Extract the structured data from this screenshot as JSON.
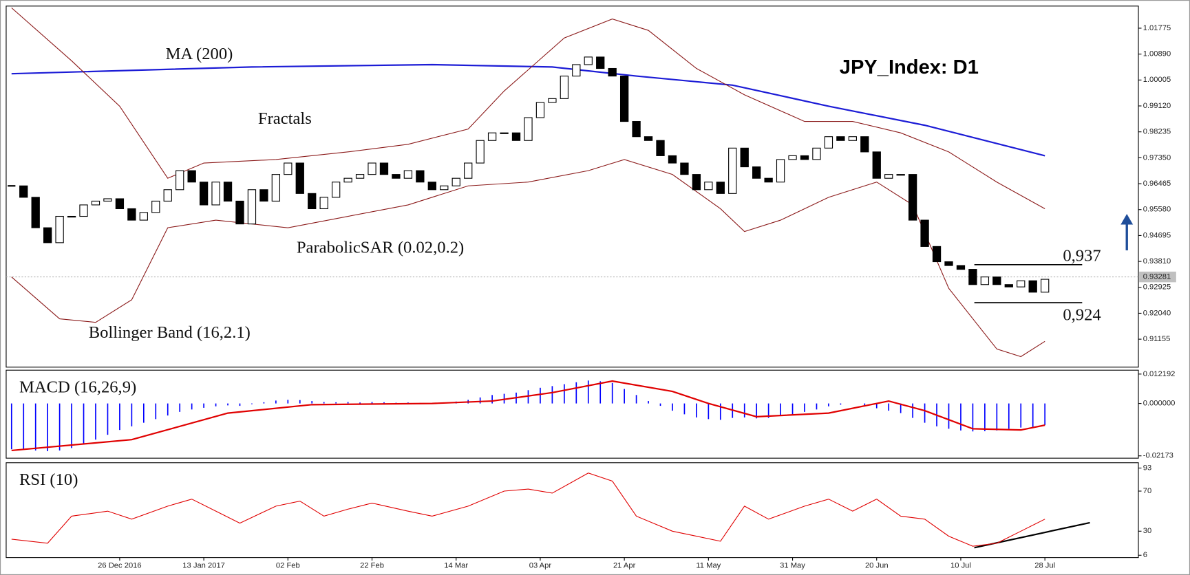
{
  "chart_data": [
    {
      "type": "candlestick",
      "title": "JPY_Index: D1",
      "categories": [
        null,
        null,
        null,
        null,
        null,
        null,
        null,
        null,
        null,
        "26 Dec 2016",
        null,
        null,
        null,
        null,
        null,
        null,
        "13 Jan 2017",
        null,
        null,
        null,
        null,
        null,
        null,
        "02 Feb",
        null,
        null,
        null,
        null,
        null,
        null,
        "22 Feb",
        null,
        null,
        null,
        null,
        null,
        null,
        "14 Mar",
        null,
        null,
        null,
        null,
        null,
        null,
        "03 Apr",
        null,
        null,
        null,
        null,
        null,
        null,
        "21 Apr",
        null,
        null,
        null,
        null,
        null,
        null,
        "11 May",
        null,
        null,
        null,
        null,
        null,
        null,
        "31 May",
        null,
        null,
        null,
        null,
        null,
        null,
        "20 Jun",
        null,
        null,
        null,
        null,
        null,
        null,
        "10 Jul",
        null,
        null,
        null,
        null,
        null,
        null,
        "28 Jul"
      ],
      "values": [
        0.9639,
        0.96,
        0.9496,
        0.9445,
        0.9535,
        0.9535,
        0.9574,
        0.9587,
        0.9595,
        0.9561,
        0.9522,
        0.9548,
        0.9587,
        0.9626,
        0.9691,
        0.9652,
        0.9574,
        0.9652,
        0.9587,
        0.9509,
        0.9626,
        0.9587,
        0.9678,
        0.9717,
        0.9613,
        0.9561,
        0.96,
        0.9652,
        0.9665,
        0.9678,
        0.9717,
        0.9678,
        0.9665,
        0.9691,
        0.9652,
        0.9626,
        0.9639,
        0.9665,
        0.9717,
        0.9794,
        0.982,
        0.982,
        0.9794,
        0.9872,
        0.9924,
        0.9937,
        1.0014,
        1.0053,
        1.0079,
        1.004,
        1.0014,
        0.9859,
        0.9807,
        0.9794,
        0.9742,
        0.9717,
        0.9678,
        0.9626,
        0.9652,
        0.9613,
        0.9768,
        0.9704,
        0.9665,
        0.9652,
        0.9729,
        0.9742,
        0.9729,
        0.9768,
        0.9807,
        0.9794,
        0.9807,
        0.9755,
        0.9665,
        0.9678,
        0.9678,
        0.9522,
        0.9432,
        0.938,
        0.9367,
        0.9354,
        0.9302,
        0.9328,
        0.9302,
        0.9294,
        0.9315,
        0.9276,
        0.932
      ],
      "up_color": "#ffffff",
      "down_color": "#000000",
      "ylim": [
        0.902,
        1.0253
      ],
      "yticks": [
        1.01775,
        {
          "value": 1.0089,
          "label": "1.00890"
        },
        1.00005,
        {
          "value": 0.9912,
          "label": "0.99120"
        },
        0.98235,
        {
          "value": 0.9735,
          "label": "0.97350"
        },
        0.96465,
        {
          "value": 0.9558,
          "label": "0.95580"
        },
        0.94695,
        {
          "value": 0.9381,
          "label": "0.93810"
        },
        0.92925,
        {
          "value": 0.9204,
          "label": "0.92040"
        },
        0.91155
      ],
      "overlays": [
        {
          "name": "MA (200)",
          "color": "#1c1cd6",
          "x": [
            0,
            20,
            35,
            45,
            52,
            60,
            68,
            76,
            86
          ],
          "values": [
            1.0022,
            1.0045,
            1.0053,
            1.0045,
            1.0014,
            0.9983,
            0.9911,
            0.9846,
            0.9742
          ]
        },
        {
          "name": "Bollinger Band (16,2.1)",
          "color": "#8b1a1a",
          "upper": {
            "x": [
              0,
              5,
              9,
              13,
              16,
              22,
              28,
              33,
              38,
              41,
              46,
              50,
              53,
              57,
              61,
              66,
              70,
              74,
              78,
              82,
              86
            ],
            "values": [
              1.0247,
              1.0066,
              0.9911,
              0.9665,
              0.9717,
              0.9729,
              0.9755,
              0.9781,
              0.9833,
              0.9963,
              1.0144,
              1.0209,
              1.017,
              1.004,
              0.995,
              0.9859,
              0.9859,
              0.982,
              0.9755,
              0.9652,
              0.9561
            ]
          },
          "lower": {
            "x": [
              0,
              4,
              7,
              10,
              13,
              17,
              23,
              28,
              33,
              38,
              43,
              48,
              51,
              55,
              59,
              61,
              64,
              68,
              72,
              75,
              78,
              82,
              84,
              86
            ],
            "values": [
              0.9328,
              0.9185,
              0.9173,
              0.925,
              0.9496,
              0.9522,
              0.9496,
              0.9535,
              0.9574,
              0.9639,
              0.9652,
              0.9691,
              0.9729,
              0.9678,
              0.9561,
              0.9483,
              0.9522,
              0.96,
              0.9652,
              0.9574,
              0.9289,
              0.9082,
              0.9056,
              0.9108
            ]
          }
        }
      ],
      "annotations": [
        "Fractals",
        "ParabolicSAR (0.02,0.2)"
      ],
      "levels": [
        {
          "value": 0.937,
          "label": "0,937"
        },
        {
          "value": 0.924,
          "label": "0,924"
        }
      ],
      "last_price": {
        "value": 0.93281,
        "label": "0.93281"
      }
    },
    {
      "type": "bar",
      "title": "MACD (16,26,9)",
      "color": "#0000ff",
      "values": [
        -0.019,
        -0.0192,
        -0.0195,
        -0.0198,
        -0.0195,
        -0.0185,
        -0.017,
        -0.015,
        -0.013,
        -0.011,
        -0.0095,
        -0.008,
        -0.0065,
        -0.005,
        -0.0035,
        -0.0025,
        -0.0018,
        -0.0012,
        -0.0008,
        -0.001,
        -0.0003,
        0.0005,
        0.0012,
        0.0015,
        0.0014,
        0.001,
        0.0006,
        0.0005,
        0.0006,
        0.0004,
        0.0006,
        0.0005,
        0.0003,
        0.0004,
        0.0002,
        0.0001,
        0.0003,
        0.0008,
        0.0015,
        0.0025,
        0.0035,
        0.004,
        0.0045,
        0.0055,
        0.0065,
        0.0072,
        0.008,
        0.0088,
        0.0095,
        0.0092,
        0.0085,
        0.006,
        0.0035,
        0.001,
        -0.001,
        -0.003,
        -0.0045,
        -0.0058,
        -0.0065,
        -0.0068,
        -0.006,
        -0.0058,
        -0.0062,
        -0.006,
        -0.0052,
        -0.0045,
        -0.0035,
        -0.0025,
        -0.0012,
        -0.0005,
        0,
        -0.0008,
        -0.002,
        -0.003,
        -0.004,
        -0.006,
        -0.008,
        -0.0095,
        -0.0105,
        -0.0112,
        -0.0116,
        -0.0115,
        -0.0112,
        -0.0105,
        -0.01,
        -0.0098,
        -0.009
      ],
      "signal": {
        "color": "#e00000",
        "x": [
          0,
          10,
          18,
          25,
          35,
          40,
          45,
          50,
          55,
          58,
          62,
          68,
          73,
          76,
          80,
          84,
          86
        ],
        "values": [
          -0.0195,
          -0.015,
          -0.004,
          -0.0005,
          0,
          0.001,
          0.0045,
          0.0093,
          0.005,
          0,
          -0.0055,
          -0.004,
          0.001,
          -0.003,
          -0.0105,
          -0.011,
          -0.009
        ]
      },
      "ylim": [
        -0.0227,
        0.0138
      ],
      "yticks": [
        0.012192,
        {
          "value": 0,
          "label": "0.000000"
        },
        -0.02173
      ]
    },
    {
      "type": "line",
      "title": "RSI (10)",
      "color": "#e00000",
      "x": [
        0,
        3,
        5,
        8,
        10,
        13,
        15,
        17,
        19,
        22,
        24,
        26,
        28,
        30,
        33,
        35,
        38,
        41,
        43,
        45,
        48,
        50,
        52,
        55,
        57,
        59,
        61,
        63,
        66,
        68,
        70,
        72,
        74,
        76,
        78,
        80,
        82,
        84,
        86
      ],
      "values": [
        22,
        18,
        45,
        50,
        42,
        55,
        62,
        50,
        38,
        55,
        60,
        45,
        52,
        58,
        50,
        45,
        55,
        70,
        72,
        68,
        88,
        80,
        45,
        30,
        25,
        20,
        55,
        42,
        55,
        62,
        50,
        62,
        45,
        42,
        25,
        15,
        18,
        30,
        42
      ],
      "ylim": [
        3.7,
        98.3
      ],
      "yticks": [
        93,
        70,
        30,
        6
      ]
    }
  ]
}
